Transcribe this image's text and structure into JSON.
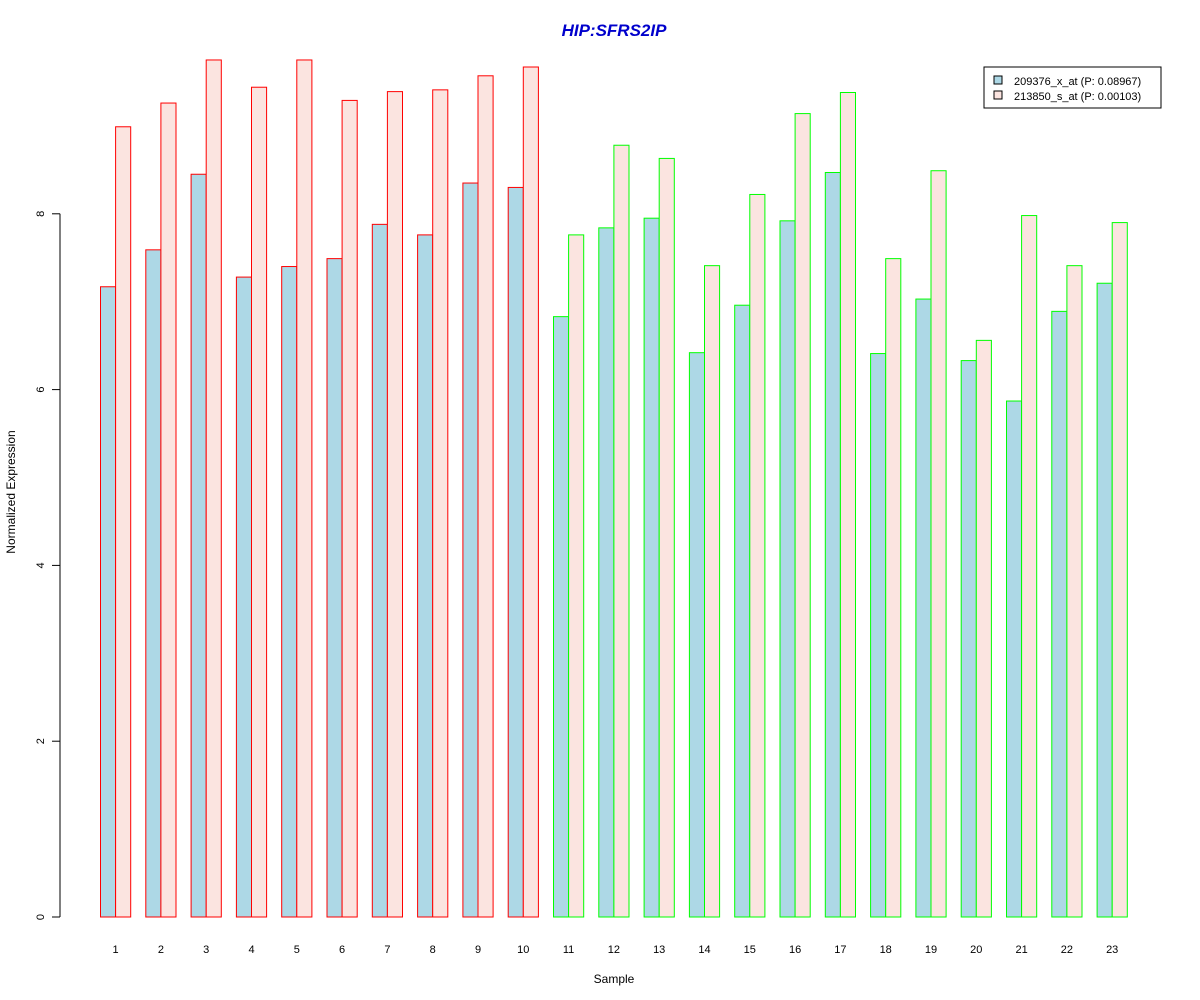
{
  "chart_data": {
    "type": "bar",
    "title": "HIP:SFRS2IP",
    "xlabel": "Sample",
    "ylabel": "Normalized Expression",
    "ylim": [
      0,
      9.8
    ],
    "yticks": [
      0,
      2,
      4,
      6,
      8
    ],
    "categories": [
      "1",
      "2",
      "3",
      "4",
      "5",
      "6",
      "7",
      "8",
      "9",
      "10",
      "11",
      "12",
      "13",
      "14",
      "15",
      "16",
      "17",
      "18",
      "19",
      "20",
      "21",
      "22",
      "23"
    ],
    "series": [
      {
        "name": "209376_x_at (P: 0.08967)",
        "fill": "#add8e6",
        "values": [
          7.17,
          7.59,
          8.45,
          7.28,
          7.4,
          7.49,
          7.88,
          7.76,
          8.35,
          8.3,
          6.83,
          7.84,
          7.95,
          6.42,
          6.96,
          7.92,
          8.47,
          6.41,
          7.03,
          6.33,
          5.87,
          6.89,
          7.21
        ]
      },
      {
        "name": "213850_s_at (P: 0.00103)",
        "fill": "#fbe4e0",
        "values": [
          8.99,
          9.26,
          9.75,
          9.44,
          9.75,
          9.29,
          9.39,
          9.41,
          9.57,
          9.67,
          7.76,
          8.78,
          8.63,
          7.41,
          8.22,
          9.14,
          9.38,
          7.49,
          8.49,
          6.56,
          7.98,
          7.41,
          7.9
        ]
      }
    ],
    "group_border_colors": [
      "#ff0000",
      "#ff0000",
      "#ff0000",
      "#ff0000",
      "#ff0000",
      "#ff0000",
      "#ff0000",
      "#ff0000",
      "#ff0000",
      "#ff0000",
      "#00ff00",
      "#00ff00",
      "#00ff00",
      "#00ff00",
      "#00ff00",
      "#00ff00",
      "#00ff00",
      "#00ff00",
      "#00ff00",
      "#00ff00",
      "#00ff00",
      "#00ff00",
      "#00ff00"
    ],
    "title_color": "#0000cc",
    "grid": false,
    "legend_position": "top-right"
  }
}
